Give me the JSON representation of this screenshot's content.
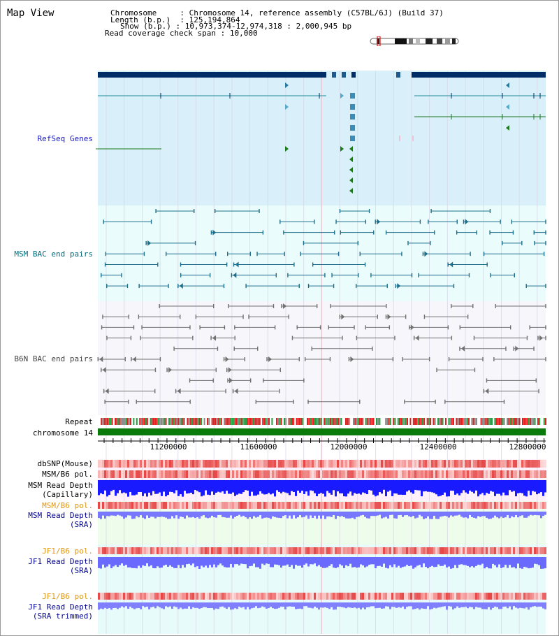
{
  "page": {
    "title": "Map View"
  },
  "header": {
    "chromosome_label": "Chromosome",
    "chromosome_value": "Chromosome 14, reference assembly (C57BL/6J) (Build 37)",
    "length_label": "Length (b.p.)",
    "length_value": "125,194,864",
    "show_label": "Show (b.p.)",
    "show_value": "10,973,374-12,974,318 : 2,000,945 bp",
    "coverage_label": "Read coverage check span",
    "coverage_value": "10,000",
    "separator": ":"
  },
  "tracks": {
    "refseq": "RefSeq Genes",
    "msm_bac": "MSM BAC end pairs",
    "b6n_bac": "B6N BAC end pairs",
    "repeat": "Repeat",
    "chromosome": "chromosome 14",
    "dbsnp": "dbSNP(Mouse)",
    "msm_b6_pol_1": "MSM/B6 pol.",
    "msm_depth_cap_1": "MSM Read Depth",
    "msm_depth_cap_2": "(Capillary)",
    "msm_b6_pol_2": "MSM/B6 pol.",
    "msm_depth_sra_1": "MSM Read Depth",
    "msm_depth_sra_2": "(SRA)",
    "jf1_b6_pol_1": "JF1/B6 pol.",
    "jf1_depth_sra_1": "JF1 Read Depth",
    "jf1_depth_sra_2": "(SRA)",
    "jf1_b6_pol_2": "JF1/B6 pol.",
    "jf1_depth_trim_1": "JF1 Read Depth",
    "jf1_depth_trim_2": "(SRA trimmed)"
  },
  "axis": {
    "ticks": [
      "11200000",
      "11600000",
      "12000000",
      "12400000",
      "12800000"
    ]
  },
  "colors": {
    "refseq_bg": "#d9effa",
    "bac_bg": "#eafcfc",
    "gene_dark": "#002d66",
    "gene_line": "#1e8c96",
    "gene_green": "#1c7a1c",
    "msm_bac": "#1f6f8b",
    "b6n_bac": "#707070",
    "chromosome_bar": "#0a7a0a",
    "depth_blue": "#1a1aff",
    "depth_light": "#7b7bff",
    "pol_red": "#f04040",
    "label_blue": "#1a1ac8",
    "label_orange": "#e0961a"
  }
}
